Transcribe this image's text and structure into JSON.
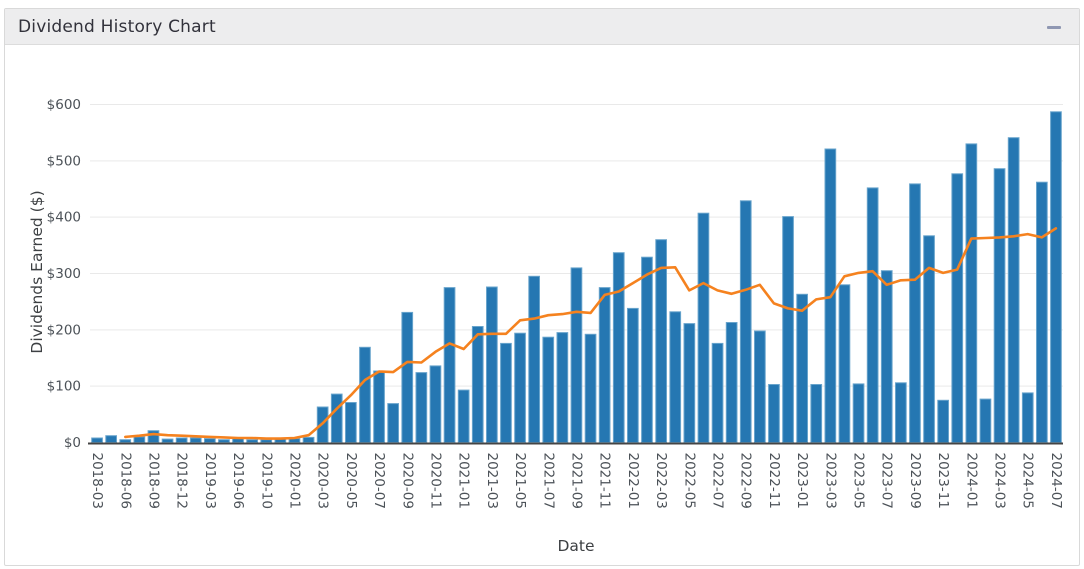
{
  "panel": {
    "title": "Dividend History Chart",
    "minimize_icon": "minus-icon"
  },
  "colors": {
    "bar_fill": "#2577b2",
    "bar_edge": "#68a4cc",
    "line": "#f5821f",
    "header_bg": "#ededee",
    "header_text": "#32323b",
    "grid": "#e9e9e9",
    "axis_text": "#4c5258",
    "axis_line": "#444444",
    "minimize_glyph": "#8f97b2"
  },
  "chart_data": {
    "type": "bar",
    "title": "Dividend History Chart",
    "xlabel": "Date",
    "ylabel": "Dividends Earned ($)",
    "ylim": [
      0,
      620
    ],
    "grid": true,
    "legend_position": "none",
    "x_tick_every": 2,
    "y_tick_values": [
      0,
      100,
      200,
      300,
      400,
      500,
      600
    ],
    "y_tick_labels": [
      "$0",
      "$100",
      "$200",
      "$300",
      "$400",
      "$500",
      "$600"
    ],
    "categories": [
      "2018-03",
      "2018-04",
      "2018-06",
      "2018-07",
      "2018-09",
      "2018-10",
      "2018-12",
      "2019-01",
      "2019-03",
      "2019-04",
      "2019-06",
      "2019-07",
      "2019-10",
      "2019-12",
      "2020-01",
      "2020-02",
      "2020-03",
      "2020-04",
      "2020-05",
      "2020-06",
      "2020-07",
      "2020-08",
      "2020-09",
      "2020-10",
      "2020-11",
      "2020-12",
      "2021-01",
      "2021-02",
      "2021-03",
      "2021-04",
      "2021-05",
      "2021-06",
      "2021-07",
      "2021-08",
      "2021-09",
      "2021-10",
      "2021-11",
      "2021-12",
      "2022-01",
      "2022-02",
      "2022-03",
      "2022-04",
      "2022-05",
      "2022-06",
      "2022-07",
      "2022-08",
      "2022-09",
      "2022-10",
      "2022-11",
      "2022-12",
      "2023-01",
      "2023-02",
      "2023-03",
      "2023-04",
      "2023-05",
      "2023-06",
      "2023-07",
      "2023-08",
      "2023-09",
      "2023-10",
      "2023-11",
      "2023-12",
      "2024-01",
      "2024-02",
      "2024-03",
      "2024-04",
      "2024-05",
      "2024-06",
      "2024-07"
    ],
    "series": [
      {
        "name": "monthly-dividends",
        "type": "bar",
        "color": "#2577b2",
        "values": [
          8,
          12,
          5,
          10,
          21,
          6,
          8,
          8,
          7,
          5,
          7,
          5,
          5,
          8,
          7,
          9,
          63,
          86,
          71,
          169,
          127,
          69,
          231,
          124,
          136,
          275,
          93,
          206,
          276,
          176,
          194,
          295,
          187,
          195,
          310,
          192,
          275,
          337,
          238,
          329,
          360,
          232,
          211,
          407,
          176,
          213,
          429,
          198,
          103,
          401,
          263,
          103,
          521,
          280,
          104,
          452,
          305,
          106,
          459,
          367,
          75,
          477,
          530,
          77,
          486,
          541,
          88,
          462,
          587
        ]
      },
      {
        "name": "moving-average",
        "type": "line",
        "color": "#f5821f",
        "values": [
          null,
          null,
          10,
          12,
          15,
          13,
          12,
          11,
          10,
          9,
          8,
          8,
          7,
          7,
          8,
          13,
          34,
          60,
          84,
          111,
          126,
          125,
          143,
          142,
          161,
          176,
          166,
          192,
          193,
          193,
          217,
          220,
          226,
          228,
          232,
          230,
          262,
          268,
          283,
          298,
          310,
          311,
          270,
          283,
          270,
          264,
          271,
          280,
          247,
          238,
          234,
          254,
          258,
          295,
          301,
          304,
          280,
          288,
          289,
          310,
          301,
          307,
          362,
          363,
          364,
          366,
          370,
          364,
          380
        ]
      }
    ]
  }
}
